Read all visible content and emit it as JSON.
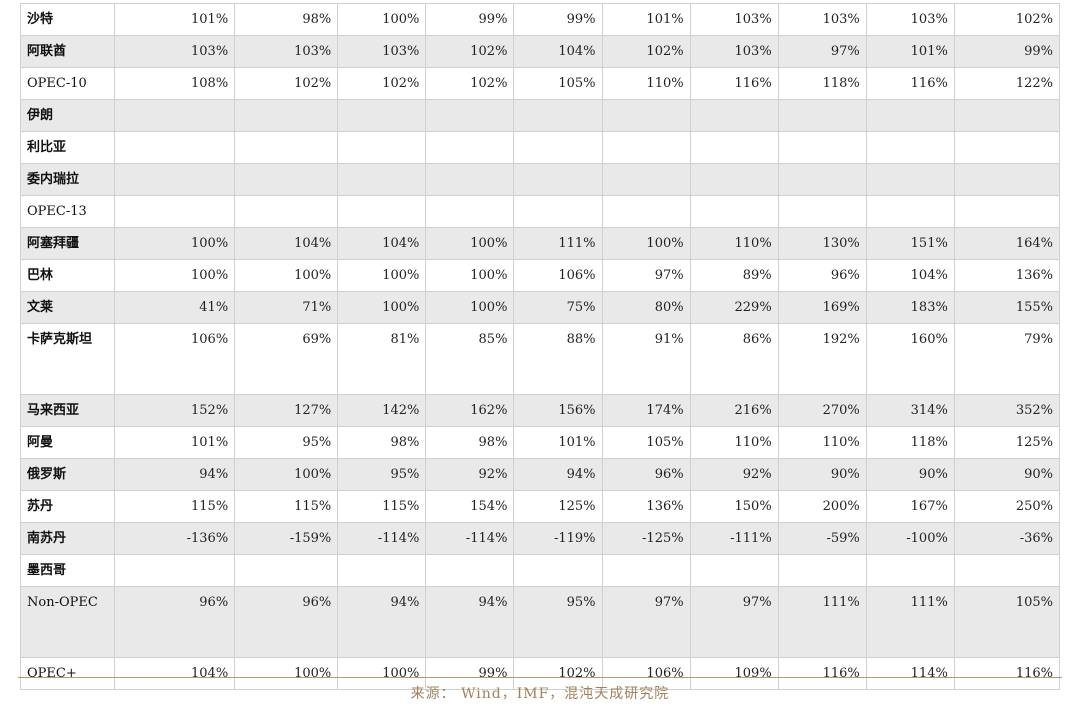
{
  "table": {
    "rows": [
      {
        "name": "沙特",
        "values": [
          "101%",
          "98%",
          "100%",
          "99%",
          "99%",
          "101%",
          "103%",
          "103%",
          "103%",
          "102%"
        ]
      },
      {
        "name": "阿联酋",
        "values": [
          "103%",
          "103%",
          "103%",
          "102%",
          "104%",
          "102%",
          "103%",
          "97%",
          "101%",
          "99%"
        ]
      },
      {
        "name": "OPEC-10",
        "values": [
          "108%",
          "102%",
          "102%",
          "102%",
          "105%",
          "110%",
          "116%",
          "118%",
          "116%",
          "122%"
        ]
      },
      {
        "name": "伊朗",
        "values": [
          "",
          "",
          "",
          "",
          "",
          "",
          "",
          "",
          "",
          ""
        ]
      },
      {
        "name": "利比亚",
        "values": [
          "",
          "",
          "",
          "",
          "",
          "",
          "",
          "",
          "",
          ""
        ]
      },
      {
        "name": "委内瑞拉",
        "values": [
          "",
          "",
          "",
          "",
          "",
          "",
          "",
          "",
          "",
          ""
        ]
      },
      {
        "name": "OPEC-13",
        "values": [
          "",
          "",
          "",
          "",
          "",
          "",
          "",
          "",
          "",
          ""
        ]
      },
      {
        "name": "阿塞拜疆",
        "values": [
          "100%",
          "104%",
          "104%",
          "100%",
          "111%",
          "100%",
          "110%",
          "130%",
          "151%",
          "164%"
        ]
      },
      {
        "name": "巴林",
        "values": [
          "100%",
          "100%",
          "100%",
          "100%",
          "106%",
          "97%",
          "89%",
          "96%",
          "104%",
          "136%"
        ]
      },
      {
        "name": "文莱",
        "values": [
          "41%",
          "71%",
          "100%",
          "100%",
          "75%",
          "80%",
          "229%",
          "169%",
          "183%",
          "155%"
        ]
      },
      {
        "name": "卡萨克斯坦",
        "values": [
          "106%",
          "69%",
          "81%",
          "85%",
          "88%",
          "91%",
          "86%",
          "192%",
          "160%",
          "79%"
        ]
      },
      {
        "name": "马来西亚",
        "values": [
          "152%",
          "127%",
          "142%",
          "162%",
          "156%",
          "174%",
          "216%",
          "270%",
          "314%",
          "352%"
        ]
      },
      {
        "name": "阿曼",
        "values": [
          "101%",
          "95%",
          "98%",
          "98%",
          "101%",
          "105%",
          "110%",
          "110%",
          "118%",
          "125%"
        ]
      },
      {
        "name": "俄罗斯",
        "values": [
          "94%",
          "100%",
          "95%",
          "92%",
          "94%",
          "96%",
          "92%",
          "90%",
          "90%",
          "90%"
        ]
      },
      {
        "name": "苏丹",
        "values": [
          "115%",
          "115%",
          "115%",
          "154%",
          "125%",
          "136%",
          "150%",
          "200%",
          "167%",
          "250%"
        ]
      },
      {
        "name": "南苏丹",
        "values": [
          "-136%",
          "-159%",
          "-114%",
          "-114%",
          "-119%",
          "-125%",
          "-111%",
          "-59%",
          "-100%",
          "-36%"
        ]
      },
      {
        "name": "墨西哥",
        "values": [
          "",
          "",
          "",
          "",
          "",
          "",
          "",
          "",
          "",
          ""
        ]
      },
      {
        "name": "Non-OPEC",
        "values": [
          "96%",
          "96%",
          "94%",
          "94%",
          "95%",
          "97%",
          "97%",
          "111%",
          "111%",
          "105%"
        ]
      },
      {
        "name": "OPEC+",
        "values": [
          "104%",
          "100%",
          "100%",
          "99%",
          "102%",
          "106%",
          "109%",
          "116%",
          "114%",
          "116%"
        ]
      }
    ]
  },
  "source_note": "来源： Wind，IMF，混沌天成研究院"
}
